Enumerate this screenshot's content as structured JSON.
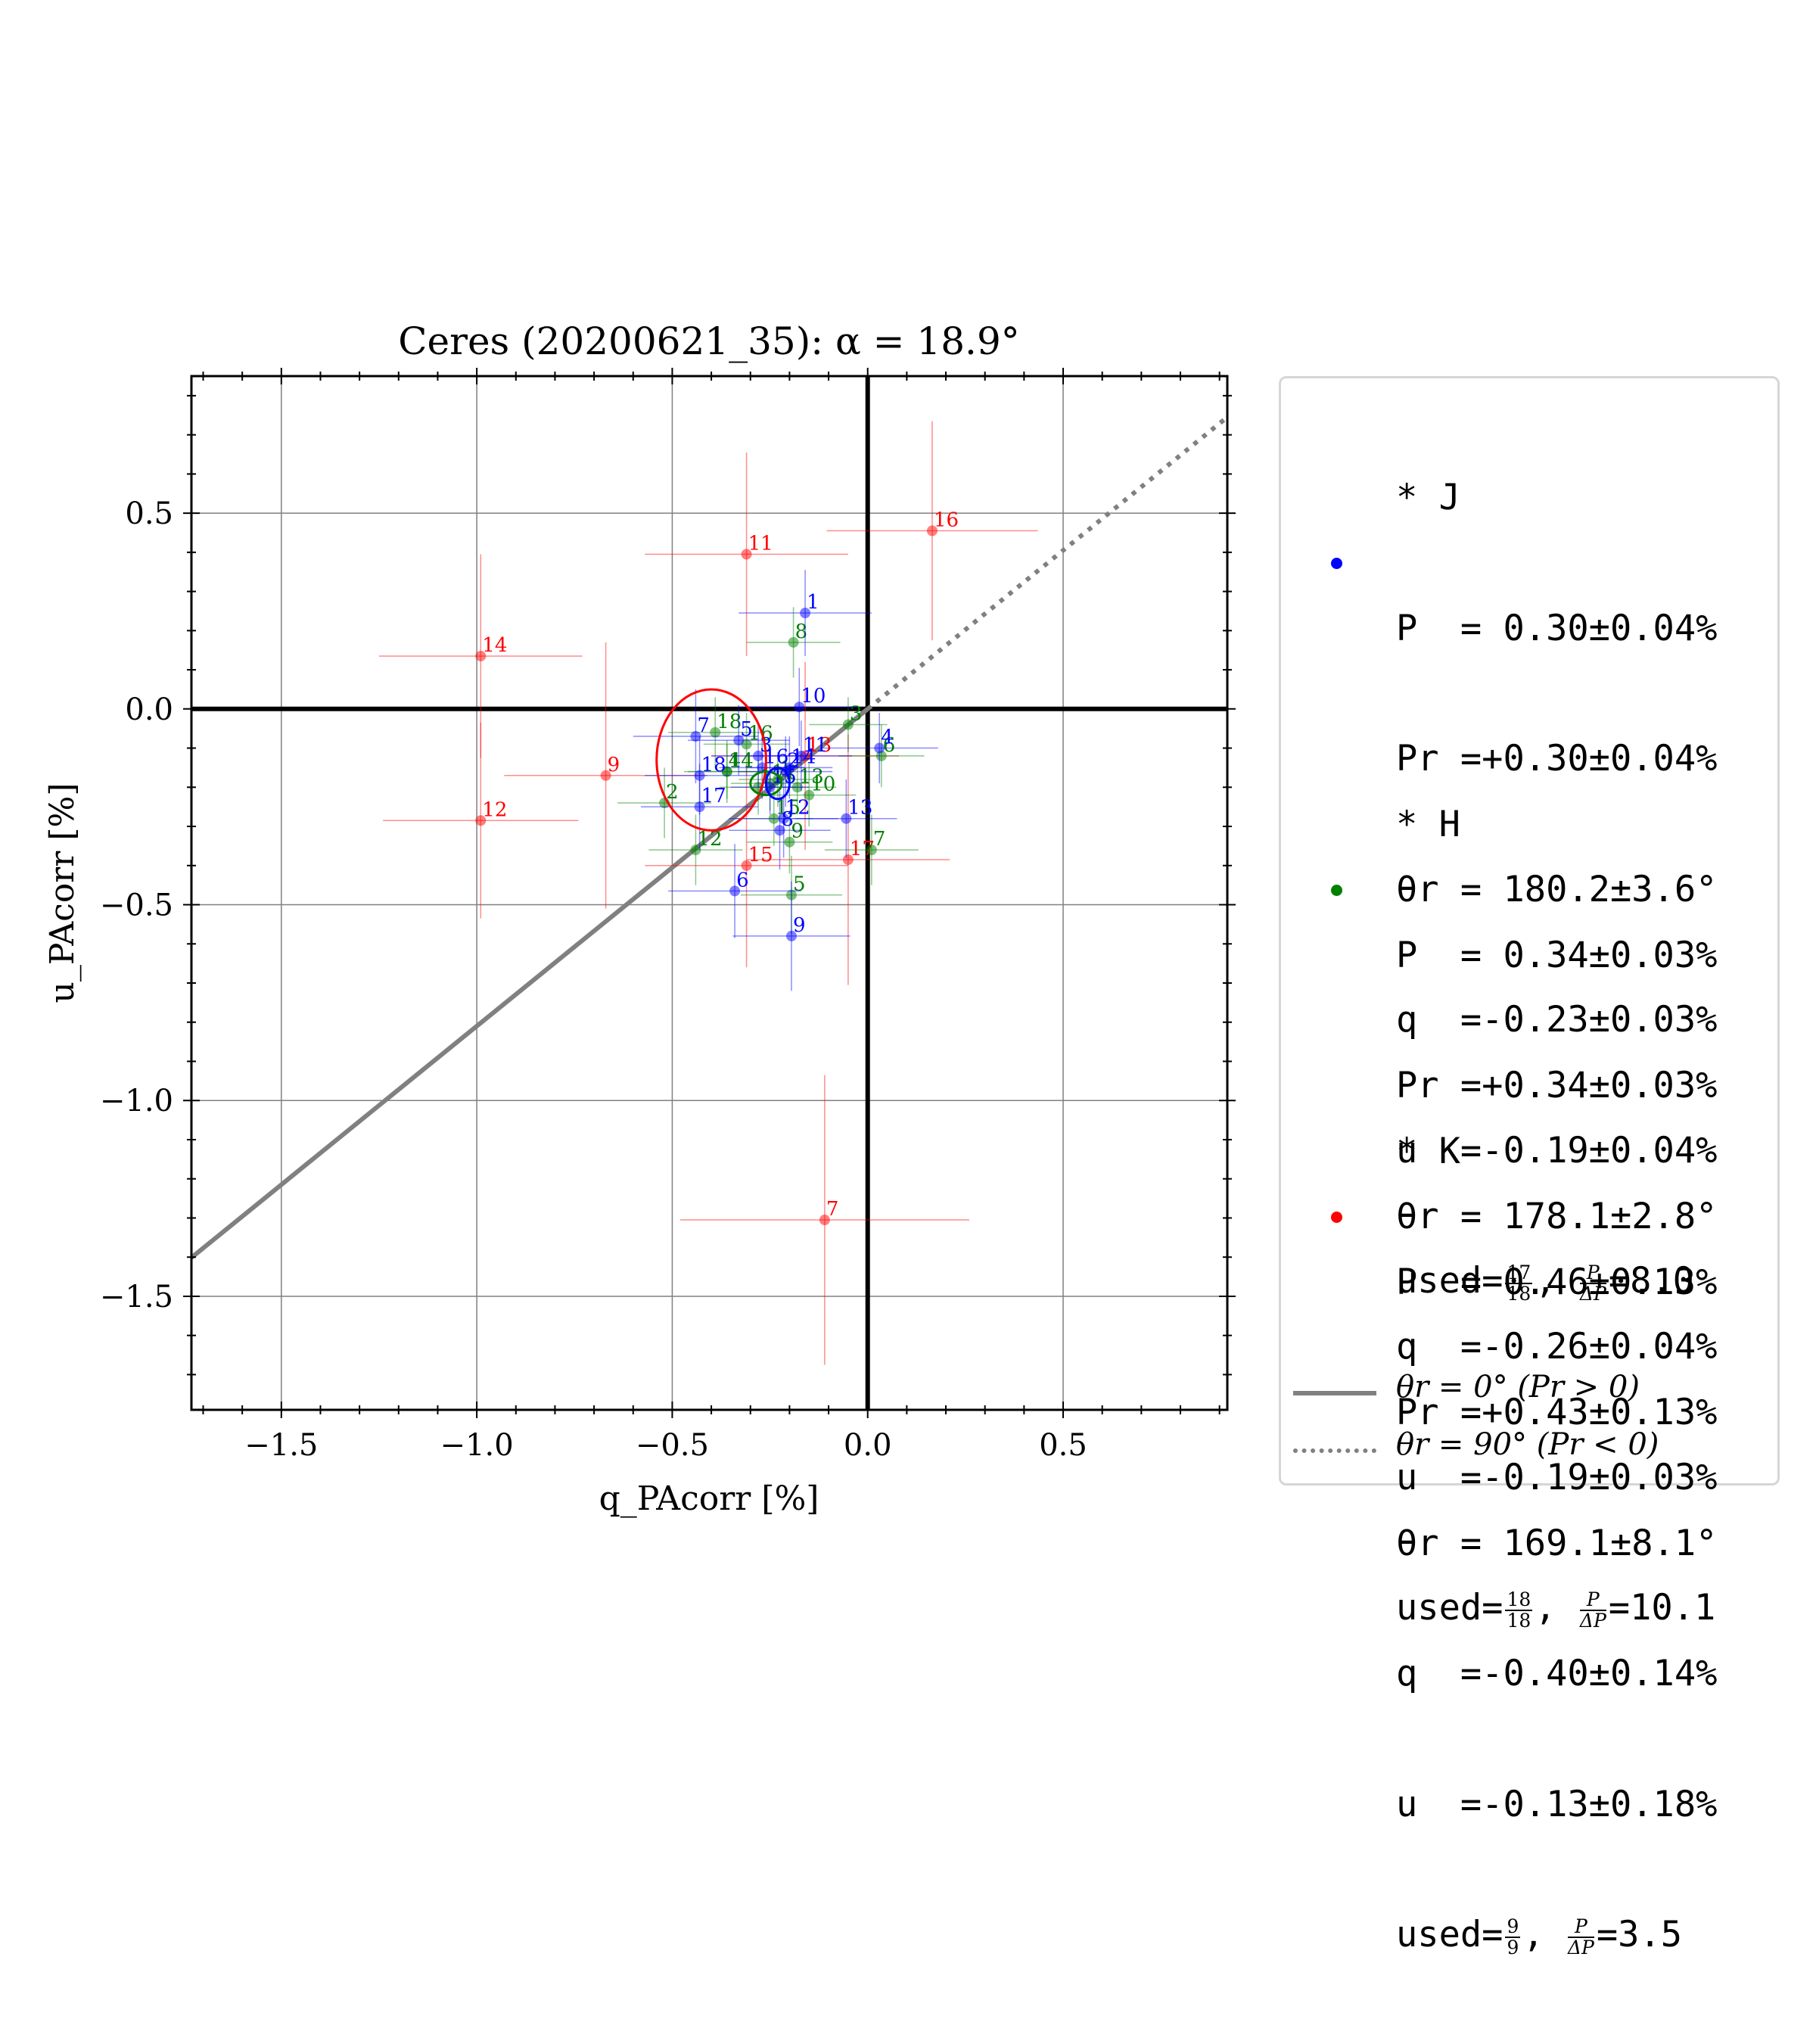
{
  "chart_data": {
    "type": "scatter",
    "title": "Ceres (20200621_35): α = 18.9°",
    "xlabel": "q_PAcorr [%]",
    "ylabel": "u_PAcorr [%]",
    "xlim": [
      -1.73,
      0.92
    ],
    "ylim": [
      -1.79,
      0.85
    ],
    "xticks": [
      -1.5,
      -1.0,
      -0.5,
      0.0,
      0.5
    ],
    "xtick_labels": [
      "−1.5",
      "−1.0",
      "−0.5",
      "0.0",
      "0.5"
    ],
    "yticks": [
      0.5,
      0.0,
      -0.5,
      -1.0,
      -1.5
    ],
    "ytick_labels": [
      "0.5",
      "0.0",
      "−0.5",
      "−1.0",
      "−1.5"
    ],
    "grid": true,
    "legend_position": "outside-right",
    "reference_lines": [
      {
        "label": "θr = 0° (Pr > 0)",
        "style": "solid",
        "color": "#808080",
        "angle_deg": 180.0
      },
      {
        "label": "θr = 90° (Pr < 0)",
        "style": "dotted",
        "color": "#808080",
        "angle_deg": 180.0
      }
    ],
    "series": [
      {
        "name": "J",
        "color": "#0000ff",
        "mean": {
          "q": -0.23,
          "u": -0.19
        },
        "ellipse": {
          "rq": 0.03,
          "ru": 0.04
        },
        "points": [
          {
            "id": "1",
            "q": -0.16,
            "u": 0.245,
            "eq": 0.17,
            "eu": 0.11
          },
          {
            "id": "2",
            "q": -0.21,
            "u": -0.16,
            "eq": 0.12,
            "eu": 0.09
          },
          {
            "id": "3",
            "q": -0.28,
            "u": -0.12,
            "eq": 0.12,
            "eu": 0.08
          },
          {
            "id": "4",
            "q": 0.03,
            "u": -0.1,
            "eq": 0.15,
            "eu": 0.09
          },
          {
            "id": "5",
            "q": -0.33,
            "u": -0.08,
            "eq": 0.13,
            "eu": 0.09
          },
          {
            "id": "6",
            "q": -0.34,
            "u": -0.465,
            "eq": 0.17,
            "eu": 0.12
          },
          {
            "id": "7",
            "q": -0.44,
            "u": -0.07,
            "eq": 0.16,
            "eu": 0.12
          },
          {
            "id": "8",
            "q": -0.225,
            "u": -0.31,
            "eq": 0.13,
            "eu": 0.1
          },
          {
            "id": "9",
            "q": -0.195,
            "u": -0.58,
            "eq": 0.15,
            "eu": 0.14
          },
          {
            "id": "10",
            "q": -0.175,
            "u": 0.005,
            "eq": 0.15,
            "eu": 0.1
          },
          {
            "id": "11",
            "q": -0.17,
            "u": -0.12,
            "eq": 0.13,
            "eu": 0.09
          },
          {
            "id": "12",
            "q": -0.215,
            "u": -0.28,
            "eq": 0.14,
            "eu": 0.1
          },
          {
            "id": "13",
            "q": -0.055,
            "u": -0.28,
            "eq": 0.13,
            "eu": 0.1
          },
          {
            "id": "14",
            "q": -0.2,
            "u": -0.15,
            "eq": 0.11,
            "eu": 0.08
          },
          {
            "id": "15",
            "q": -0.25,
            "u": -0.2,
            "eq": 0.1,
            "eu": 0.07
          },
          {
            "id": "16",
            "q": -0.27,
            "u": -0.15,
            "eq": 0.11,
            "eu": 0.08
          },
          {
            "id": "17",
            "q": -0.43,
            "u": -0.25,
            "eq": 0.15,
            "eu": 0.11
          },
          {
            "id": "18",
            "q": -0.43,
            "u": -0.17,
            "eq": 0.14,
            "eu": 0.1
          }
        ]
      },
      {
        "name": "H",
        "color": "#008000",
        "mean": {
          "q": -0.26,
          "u": -0.19
        },
        "ellipse": {
          "rq": 0.04,
          "ru": 0.03
        },
        "points": [
          {
            "id": "1",
            "q": -0.23,
            "u": -0.18,
            "eq": 0.1,
            "eu": 0.07
          },
          {
            "id": "2",
            "q": -0.52,
            "u": -0.24,
            "eq": 0.12,
            "eu": 0.09
          },
          {
            "id": "3",
            "q": -0.05,
            "u": -0.04,
            "eq": 0.1,
            "eu": 0.07
          },
          {
            "id": "4",
            "q": -0.36,
            "u": -0.16,
            "eq": 0.11,
            "eu": 0.08
          },
          {
            "id": "5",
            "q": -0.195,
            "u": -0.475,
            "eq": 0.13,
            "eu": 0.1
          },
          {
            "id": "6",
            "q": 0.035,
            "u": -0.12,
            "eq": 0.11,
            "eu": 0.08
          },
          {
            "id": "7",
            "q": 0.01,
            "u": -0.36,
            "eq": 0.12,
            "eu": 0.09
          },
          {
            "id": "8",
            "q": -0.19,
            "u": 0.17,
            "eq": 0.12,
            "eu": 0.09
          },
          {
            "id": "9",
            "q": -0.2,
            "u": -0.34,
            "eq": 0.11,
            "eu": 0.08
          },
          {
            "id": "10",
            "q": -0.15,
            "u": -0.22,
            "eq": 0.12,
            "eu": 0.08
          },
          {
            "id": "11",
            "q": -0.25,
            "u": -0.19,
            "eq": 0.1,
            "eu": 0.07
          },
          {
            "id": "12",
            "q": -0.44,
            "u": -0.36,
            "eq": 0.12,
            "eu": 0.09
          },
          {
            "id": "13",
            "q": -0.18,
            "u": -0.2,
            "eq": 0.1,
            "eu": 0.07
          },
          {
            "id": "14",
            "q": -0.36,
            "u": -0.16,
            "eq": 0.1,
            "eu": 0.07
          },
          {
            "id": "15",
            "q": -0.24,
            "u": -0.28,
            "eq": 0.1,
            "eu": 0.07
          },
          {
            "id": "16",
            "q": -0.31,
            "u": -0.09,
            "eq": 0.11,
            "eu": 0.08
          },
          {
            "id": "17",
            "q": -0.28,
            "u": -0.2,
            "eq": 0.1,
            "eu": 0.07
          },
          {
            "id": "18",
            "q": -0.39,
            "u": -0.06,
            "eq": 0.12,
            "eu": 0.09
          }
        ]
      },
      {
        "name": "K",
        "color": "#ff0000",
        "mean": {
          "q": -0.4,
          "u": -0.13
        },
        "ellipse": {
          "rq": 0.14,
          "ru": 0.18
        },
        "points": [
          {
            "id": "7",
            "q": -0.11,
            "u": -1.305,
            "eq": 0.37,
            "eu": 0.37
          },
          {
            "id": "9",
            "q": -0.67,
            "u": -0.17,
            "eq": 0.26,
            "eu": 0.34
          },
          {
            "id": "11",
            "q": -0.31,
            "u": 0.395,
            "eq": 0.26,
            "eu": 0.26
          },
          {
            "id": "12",
            "q": -0.99,
            "u": -0.285,
            "eq": 0.25,
            "eu": 0.25
          },
          {
            "id": "13",
            "q": -0.16,
            "u": -0.12,
            "eq": 0.24,
            "eu": 0.24
          },
          {
            "id": "14",
            "q": -0.99,
            "u": 0.135,
            "eq": 0.26,
            "eu": 0.26
          },
          {
            "id": "15",
            "q": -0.31,
            "u": -0.4,
            "eq": 0.26,
            "eu": 0.26
          },
          {
            "id": "16",
            "q": 0.165,
            "u": 0.455,
            "eq": 0.27,
            "eu": 0.28
          },
          {
            "id": "17",
            "q": -0.05,
            "u": -0.385,
            "eq": 0.26,
            "eu": 0.32
          }
        ]
      }
    ]
  },
  "legend": {
    "entries": [
      {
        "band": "* J",
        "P": "P  = 0.30±0.04%",
        "Pr": "Pr =+0.30±0.04%",
        "theta": "θr = 180.2±3.6°",
        "q": "q  =-0.23±0.03%",
        "u": "u  =-0.19±0.04%",
        "used_prefix": "used=",
        "used_num": "17",
        "used_den": "18",
        "snr_label_num": "P",
        "snr_label_den": "ΔP",
        "snr_value": "=8.0",
        "color": "#0000ff"
      },
      {
        "band": "* H",
        "P": "P  = 0.34±0.03%",
        "Pr": "Pr =+0.34±0.03%",
        "theta": "θr = 178.1±2.8°",
        "q": "q  =-0.26±0.04%",
        "u": "u  =-0.19±0.03%",
        "used_prefix": "used=",
        "used_num": "18",
        "used_den": "18",
        "snr_label_num": "P",
        "snr_label_den": "ΔP",
        "snr_value": "=10.1",
        "color": "#008000"
      },
      {
        "band": "* K",
        "P": "P  = 0.46±0.13%",
        "Pr": "Pr =+0.43±0.13%",
        "theta": "θr = 169.1±8.1°",
        "q": "q  =-0.40±0.14%",
        "u": "u  =-0.13±0.18%",
        "used_prefix": "used=",
        "used_num": "9",
        "used_den": "9",
        "snr_label_num": "P",
        "snr_label_den": "ΔP",
        "snr_value": "=3.5",
        "color": "#ff0000"
      }
    ],
    "line_solid_label": "θr = 0° (Pr > 0)",
    "line_dotted_label": "θr = 90° (Pr < 0)"
  }
}
